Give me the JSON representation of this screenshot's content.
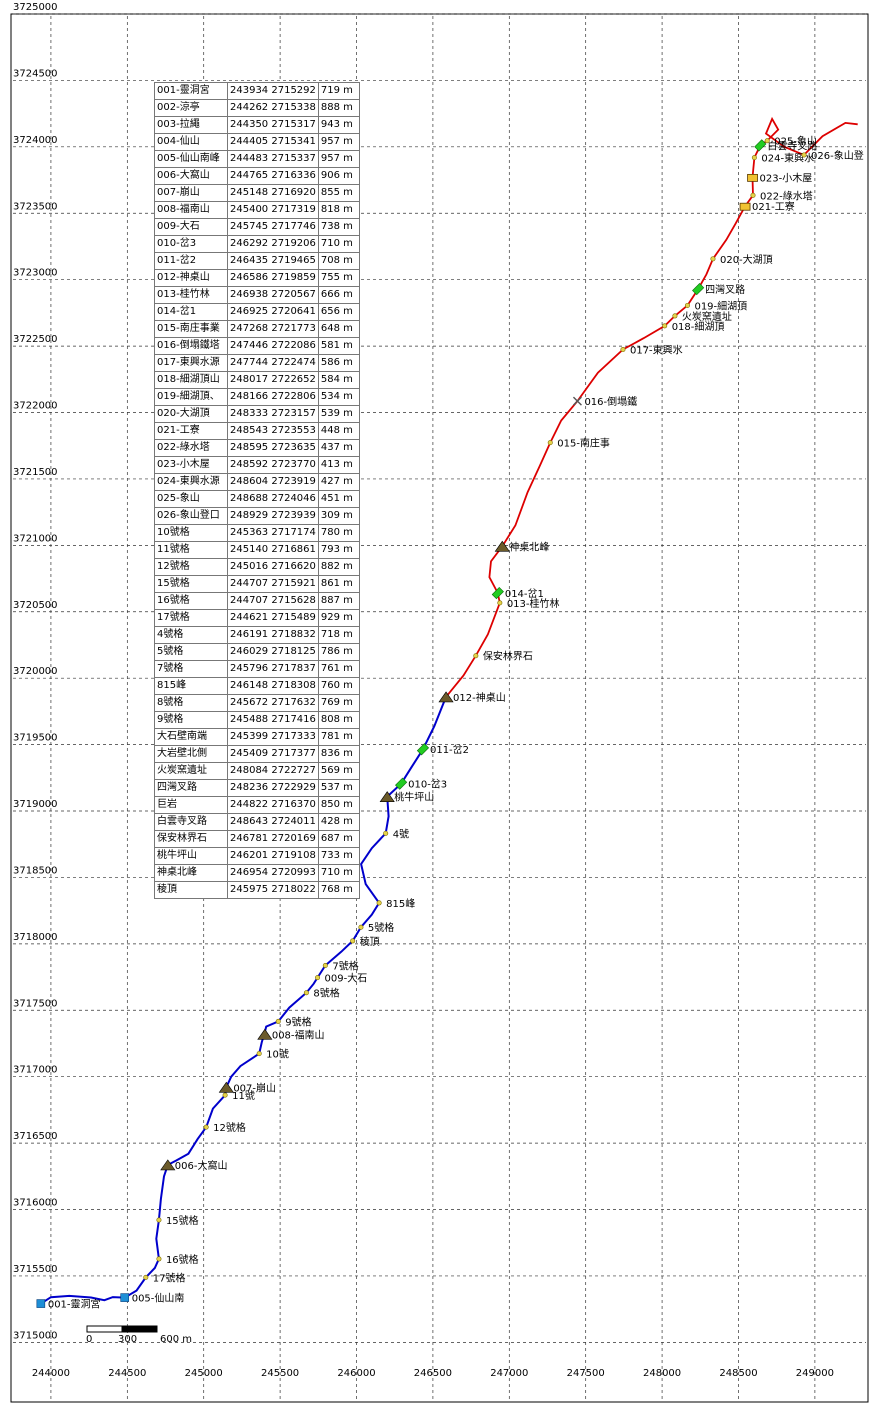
{
  "map": {
    "x_ticks": [
      "244000",
      "244500",
      "245000",
      "245500",
      "246000",
      "246500",
      "247000",
      "247500",
      "248000",
      "248500",
      "249000"
    ],
    "y_ticks": [
      "3725000",
      "3724500",
      "3724000",
      "3723500",
      "3723000",
      "3722500",
      "3722000",
      "3721500",
      "3721000",
      "3720500",
      "3720000",
      "3719500",
      "3719000",
      "3718500",
      "3718000",
      "3717500",
      "3717000",
      "3716500",
      "3716000",
      "3715500",
      "3715000"
    ],
    "x_range": [
      243850,
      249400
    ],
    "y_range": [
      3714950,
      3725000
    ],
    "route_colors": {
      "south": "#0000cc",
      "north": "#dd0000"
    },
    "scale_bar": {
      "labels": [
        "0",
        "300",
        "600 m"
      ]
    }
  },
  "waypoint_table": [
    [
      "001-靈洞宮",
      "243934 2715292",
      "719 m"
    ],
    [
      "002-涼亭",
      "244262 2715338",
      "888 m"
    ],
    [
      "003-拉繩",
      "244350 2715317",
      "943 m"
    ],
    [
      "004-仙山",
      "244405 2715341",
      "957 m"
    ],
    [
      "005-仙山南峰",
      "244483 2715337",
      "957 m"
    ],
    [
      "006-大窩山",
      "244765 2716336",
      "906 m"
    ],
    [
      "007-崩山",
      "245148 2716920",
      "855 m"
    ],
    [
      "008-福南山",
      "245400 2717319",
      "818 m"
    ],
    [
      "009-大石",
      "245745 2717746",
      "738 m"
    ],
    [
      "010-岔3",
      "246292 2719206",
      "710 m"
    ],
    [
      "011-岔2",
      "246435 2719465",
      "708 m"
    ],
    [
      "012-神桌山",
      "246586 2719859",
      "755 m"
    ],
    [
      "013-桂竹林",
      "246938 2720567",
      "666 m"
    ],
    [
      "014-岔1",
      "246925 2720641",
      "656 m"
    ],
    [
      "015-南庄事業",
      "247268 2721773",
      "648 m"
    ],
    [
      "016-倒塌鐵塔",
      "247446 2722086",
      "581 m"
    ],
    [
      "017-東興水源",
      "247744 2722474",
      "586 m"
    ],
    [
      "018-細湖頂山",
      "248017 2722652",
      "584 m"
    ],
    [
      "019-細湖頂、",
      "248166 2722806",
      "534 m"
    ],
    [
      "020-大湖頂",
      "248333 2723157",
      "539 m"
    ],
    [
      "021-工寮",
      "248543 2723553",
      "448 m"
    ],
    [
      "022-綠水塔",
      "248595 2723635",
      "437 m"
    ],
    [
      "023-小木屋",
      "248592 2723770",
      "413 m"
    ],
    [
      "024-東興水源",
      "248604 2723919",
      "427 m"
    ],
    [
      "025-象山",
      "248688 2724046",
      "451 m"
    ],
    [
      "026-象山登口",
      "248929 2723939",
      "309 m"
    ],
    [
      "10號格",
      "245363 2717174",
      "780 m"
    ],
    [
      "11號格",
      "245140 2716861",
      "793 m"
    ],
    [
      "12號格",
      "245016 2716620",
      "882 m"
    ],
    [
      "15號格",
      "244707 2715921",
      "861 m"
    ],
    [
      "16號格",
      "244707 2715628",
      "887 m"
    ],
    [
      "17號格",
      "244621 2715489",
      "929 m"
    ],
    [
      "4號格",
      "246191 2718832",
      "718 m"
    ],
    [
      "5號格",
      "246029 2718125",
      "786 m"
    ],
    [
      "7號格",
      "245796 2717837",
      "761 m"
    ],
    [
      "815峰",
      "246148 2718308",
      "760 m"
    ],
    [
      "8號格",
      "245672 2717632",
      "769 m"
    ],
    [
      "9號格",
      "245488 2717416",
      "808 m"
    ],
    [
      "大石壁南端",
      "245399 2717333",
      "781 m"
    ],
    [
      "大岩壁北側",
      "245409 2717377",
      "836 m"
    ],
    [
      "火炭窯遺址",
      "248084 2722727",
      "569 m"
    ],
    [
      "四灣叉路",
      "248236 2722929",
      "537 m"
    ],
    [
      "巨岩",
      "244822 2716370",
      "850 m"
    ],
    [
      "白雲寺叉路",
      "248643 2724011",
      "428 m"
    ],
    [
      "保安林界石",
      "246781 2720169",
      "687 m"
    ],
    [
      "桃牛坪山",
      "246201 2719108",
      "733 m"
    ],
    [
      "神桌北峰",
      "246954 2720993",
      "710 m"
    ],
    [
      "稜頂",
      "245975 2718022",
      "768 m"
    ]
  ],
  "labels": [
    {
      "text": "001-靈洞宮",
      "x": 243934,
      "y": 3715292,
      "sym": "flag"
    },
    {
      "text": "005-仙山南",
      "x": 244483,
      "y": 3715337,
      "sym": "flag"
    },
    {
      "text": "006-大窩山",
      "x": 244765,
      "y": 3716336,
      "sym": "peak"
    },
    {
      "text": "007-崩山",
      "x": 245148,
      "y": 3716920,
      "sym": "peak"
    },
    {
      "text": "008-福南山",
      "x": 245400,
      "y": 3717319,
      "sym": "peak"
    },
    {
      "text": "009-大石",
      "x": 245745,
      "y": 3717746,
      "sym": "dot"
    },
    {
      "text": "010-岔3",
      "x": 246292,
      "y": 3719206,
      "sym": "junction"
    },
    {
      "text": "011-岔2",
      "x": 246435,
      "y": 3719465,
      "sym": "junction"
    },
    {
      "text": "012-神桌山",
      "x": 246586,
      "y": 3719859,
      "sym": "peak"
    },
    {
      "text": "013-桂竹林",
      "x": 246938,
      "y": 3720567,
      "sym": "dot"
    },
    {
      "text": "014-岔1",
      "x": 246925,
      "y": 3720641,
      "sym": "junction"
    },
    {
      "text": "015-南庄事",
      "x": 247268,
      "y": 3721773,
      "sym": "dot"
    },
    {
      "text": "016-倒塌鐵",
      "x": 247446,
      "y": 3722086,
      "sym": "tower"
    },
    {
      "text": "017-東興水",
      "x": 247744,
      "y": 3722474,
      "sym": "dot"
    },
    {
      "text": "018-細湖頂",
      "x": 248017,
      "y": 3722652,
      "sym": "dot"
    },
    {
      "text": "019-細湖頂",
      "x": 248166,
      "y": 3722806,
      "sym": "dot"
    },
    {
      "text": "020-大湖頂",
      "x": 248333,
      "y": 3723157,
      "sym": "dot"
    },
    {
      "text": "021-工寮",
      "x": 248543,
      "y": 3723553,
      "sym": "hut"
    },
    {
      "text": "022-綠水塔",
      "x": 248595,
      "y": 3723635,
      "sym": "dot"
    },
    {
      "text": "023-小木屋",
      "x": 248592,
      "y": 3723770,
      "sym": "hut"
    },
    {
      "text": "024-東興水",
      "x": 248604,
      "y": 3723919,
      "sym": "dot"
    },
    {
      "text": "025-象山",
      "x": 248688,
      "y": 3724046,
      "sym": "dot"
    },
    {
      "text": "026-象山登",
      "x": 248929,
      "y": 3723939,
      "sym": "dot"
    },
    {
      "text": "10號",
      "x": 245363,
      "y": 3717174,
      "sym": "dot"
    },
    {
      "text": "11號",
      "x": 245140,
      "y": 3716861,
      "sym": "dot"
    },
    {
      "text": "12號格",
      "x": 245016,
      "y": 3716620,
      "sym": "dot"
    },
    {
      "text": "15號格",
      "x": 244707,
      "y": 3715921,
      "sym": "dot"
    },
    {
      "text": "16號格",
      "x": 244707,
      "y": 3715628,
      "sym": "dot"
    },
    {
      "text": "17號格",
      "x": 244621,
      "y": 3715489,
      "sym": "dot"
    },
    {
      "text": "4號",
      "x": 246191,
      "y": 3718832,
      "sym": "dot"
    },
    {
      "text": "5號格",
      "x": 246029,
      "y": 3718125,
      "sym": "dot"
    },
    {
      "text": "7號格",
      "x": 245796,
      "y": 3717837,
      "sym": "dot"
    },
    {
      "text": "815峰",
      "x": 246148,
      "y": 3718308,
      "sym": "dot"
    },
    {
      "text": "8號格",
      "x": 245672,
      "y": 3717632,
      "sym": "dot"
    },
    {
      "text": "9號格",
      "x": 245488,
      "y": 3717416,
      "sym": "dot"
    },
    {
      "text": "火炭窯遺址",
      "x": 248084,
      "y": 3722727,
      "sym": "dot"
    },
    {
      "text": "四灣叉路",
      "x": 248236,
      "y": 3722929,
      "sym": "junction"
    },
    {
      "text": "白雲寺叉路",
      "x": 248643,
      "y": 3724011,
      "sym": "junction"
    },
    {
      "text": "保安林界石",
      "x": 246781,
      "y": 3720169,
      "sym": "dot"
    },
    {
      "text": "桃牛坪山",
      "x": 246201,
      "y": 3719108,
      "sym": "peak"
    },
    {
      "text": "神桌北峰",
      "x": 246954,
      "y": 3720993,
      "sym": "peak"
    },
    {
      "text": "稜頂",
      "x": 245975,
      "y": 3718022,
      "sym": "dot"
    }
  ],
  "route_south": [
    [
      243910,
      3715280
    ],
    [
      243934,
      3715292
    ],
    [
      244000,
      3715340
    ],
    [
      244120,
      3715350
    ],
    [
      244262,
      3715338
    ],
    [
      244350,
      3715317
    ],
    [
      244405,
      3715341
    ],
    [
      244483,
      3715337
    ],
    [
      244560,
      3715390
    ],
    [
      244621,
      3715489
    ],
    [
      244680,
      3715560
    ],
    [
      244707,
      3715628
    ],
    [
      244690,
      3715780
    ],
    [
      244707,
      3715921
    ],
    [
      244720,
      3716080
    ],
    [
      244740,
      3716250
    ],
    [
      244765,
      3716336
    ],
    [
      244822,
      3716370
    ],
    [
      244900,
      3716420
    ],
    [
      244960,
      3716530
    ],
    [
      245016,
      3716620
    ],
    [
      245060,
      3716760
    ],
    [
      245140,
      3716861
    ],
    [
      245148,
      3716920
    ],
    [
      245180,
      3717000
    ],
    [
      245240,
      3717080
    ],
    [
      245363,
      3717174
    ],
    [
      245380,
      3717260
    ],
    [
      245399,
      3717333
    ],
    [
      245409,
      3717377
    ],
    [
      245488,
      3717416
    ],
    [
      245560,
      3717520
    ],
    [
      245672,
      3717632
    ],
    [
      245720,
      3717700
    ],
    [
      245745,
      3717746
    ],
    [
      245796,
      3717837
    ],
    [
      245900,
      3717940
    ],
    [
      245975,
      3718022
    ],
    [
      246029,
      3718125
    ],
    [
      246100,
      3718220
    ],
    [
      246148,
      3718308
    ],
    [
      246060,
      3718450
    ],
    [
      246030,
      3718600
    ],
    [
      246100,
      3718720
    ],
    [
      246191,
      3718832
    ],
    [
      246210,
      3718960
    ],
    [
      246201,
      3719108
    ],
    [
      246292,
      3719206
    ],
    [
      246360,
      3719330
    ],
    [
      246435,
      3719465
    ],
    [
      246510,
      3719640
    ],
    [
      246586,
      3719859
    ]
  ],
  "route_north": [
    [
      246586,
      3719859
    ],
    [
      246700,
      3720020
    ],
    [
      246781,
      3720169
    ],
    [
      246860,
      3720330
    ],
    [
      246938,
      3720567
    ],
    [
      246925,
      3720641
    ],
    [
      246870,
      3720760
    ],
    [
      246880,
      3720880
    ],
    [
      246954,
      3720993
    ],
    [
      247040,
      3721150
    ],
    [
      247120,
      3721400
    ],
    [
      247200,
      3721600
    ],
    [
      247268,
      3721773
    ],
    [
      247340,
      3721940
    ],
    [
      247446,
      3722086
    ],
    [
      247580,
      3722300
    ],
    [
      247744,
      3722474
    ],
    [
      247880,
      3722560
    ],
    [
      248017,
      3722652
    ],
    [
      248084,
      3722727
    ],
    [
      248166,
      3722806
    ],
    [
      248236,
      3722929
    ],
    [
      248290,
      3723040
    ],
    [
      248333,
      3723157
    ],
    [
      248420,
      3723300
    ],
    [
      248480,
      3723420
    ],
    [
      248543,
      3723553
    ],
    [
      248595,
      3723635
    ],
    [
      248592,
      3723770
    ],
    [
      248604,
      3723919
    ],
    [
      248643,
      3724011
    ],
    [
      248688,
      3724046
    ],
    [
      248760,
      3724130
    ],
    [
      248720,
      3724210
    ],
    [
      248680,
      3724100
    ],
    [
      248800,
      3724000
    ],
    [
      248929,
      3723939
    ],
    [
      249050,
      3724080
    ],
    [
      249200,
      3724180
    ],
    [
      249280,
      3724170
    ]
  ]
}
